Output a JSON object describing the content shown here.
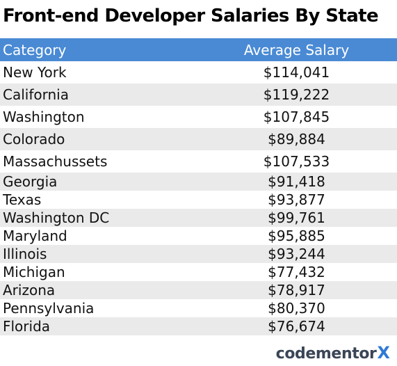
{
  "chart_data": {
    "type": "table",
    "title": "Front-end Developer Salaries By State",
    "columns": [
      "Category",
      "Average Salary"
    ],
    "rows": [
      {
        "category": "New York",
        "salary": "$114,041",
        "value": 114041
      },
      {
        "category": "California",
        "salary": "$119,222",
        "value": 119222
      },
      {
        "category": "Washington",
        "salary": "$107,845",
        "value": 107845
      },
      {
        "category": "Colorado",
        "salary": "$89,884",
        "value": 89884
      },
      {
        "category": "Massachussets",
        "salary": "$107,533",
        "value": 107533
      },
      {
        "category": "Georgia",
        "salary": "$91,418",
        "value": 91418
      },
      {
        "category": "Texas",
        "salary": "$93,877",
        "value": 93877
      },
      {
        "category": "Washington DC",
        "salary": "$99,761",
        "value": 99761
      },
      {
        "category": "Maryland",
        "salary": "$95,885",
        "value": 95885
      },
      {
        "category": "Illinois",
        "salary": "$93,244",
        "value": 93244
      },
      {
        "category": "Michigan",
        "salary": "$77,432",
        "value": 77432
      },
      {
        "category": "Arizona",
        "salary": "$78,917",
        "value": 78917
      },
      {
        "category": "Pennsylvania",
        "salary": "$80,370",
        "value": 80370
      },
      {
        "category": "Florida",
        "salary": "$76,674",
        "value": 76674
      }
    ]
  },
  "branding": {
    "logo_text": "codementor",
    "logo_mark": "X",
    "colors": {
      "header_bg": "#4a8ad4",
      "stripe_bg": "#eaeaea",
      "logo_text": "#3a4556",
      "logo_mark": "#2f79d6"
    }
  }
}
